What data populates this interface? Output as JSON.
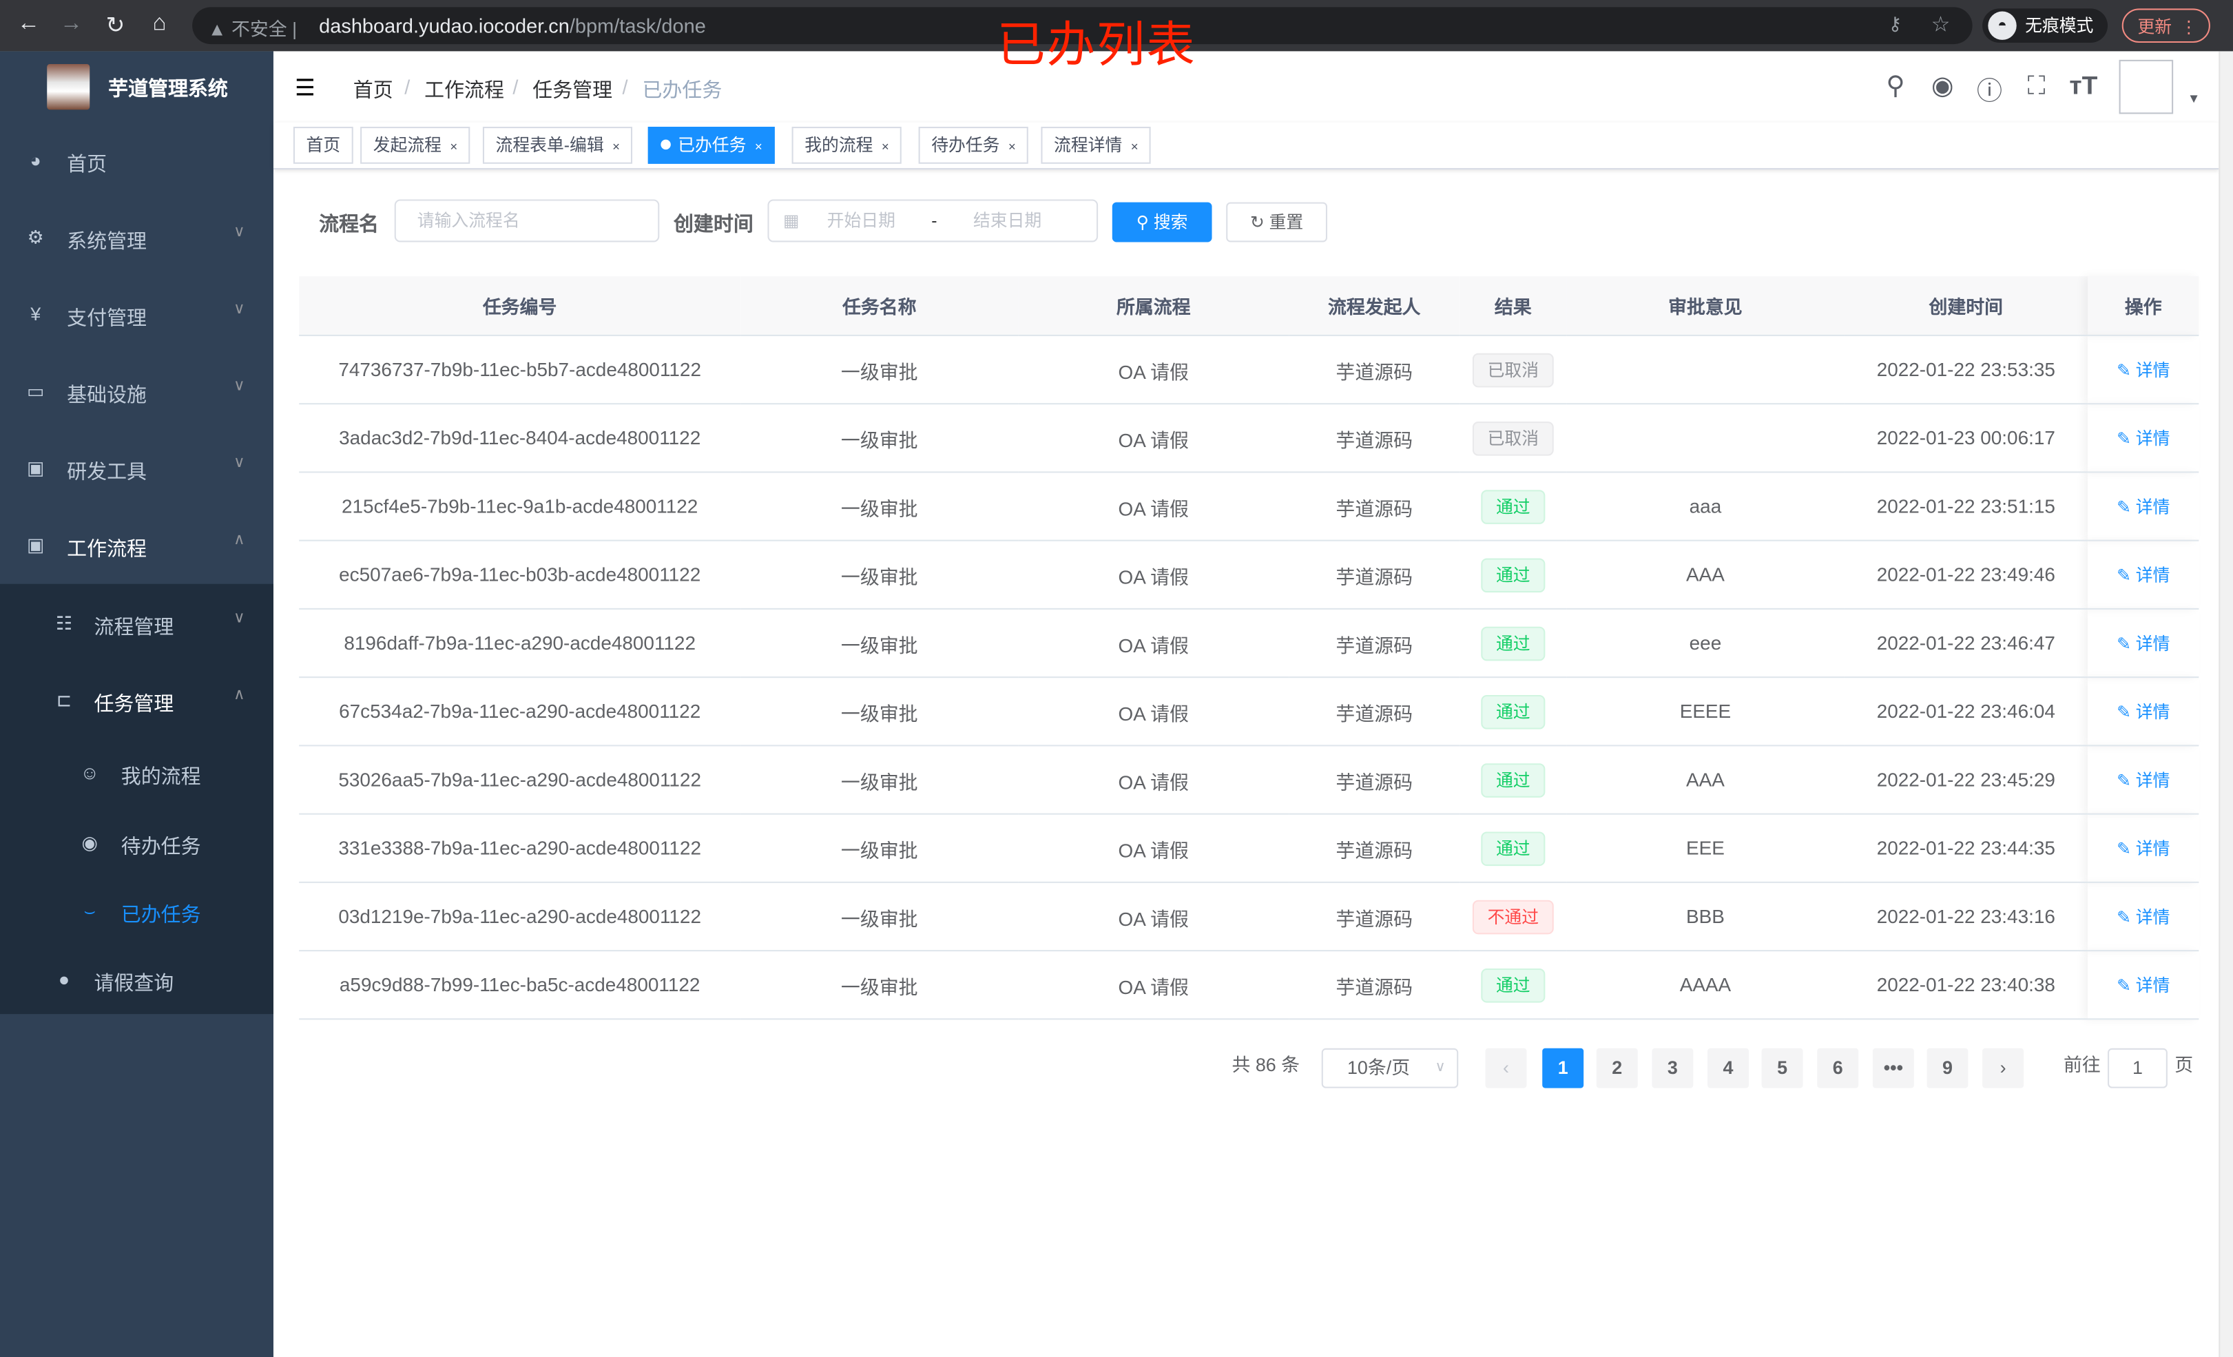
{
  "browser": {
    "insecure_label": "不安全",
    "url_host": "dashboard.yudao.iocoder.cn",
    "url_path": "/bpm/task/done",
    "incognito_label": "无痕模式",
    "update_label": "更新"
  },
  "overlay_title": "已办列表",
  "sidebar": {
    "logo_text": "芋道管理系统",
    "items": [
      {
        "label": "首页",
        "icon": "dashboard-icon"
      },
      {
        "label": "系统管理",
        "icon": "gear-icon"
      },
      {
        "label": "支付管理",
        "icon": "yen-icon"
      },
      {
        "label": "基础设施",
        "icon": "monitor-icon"
      },
      {
        "label": "研发工具",
        "icon": "toolbox-icon"
      },
      {
        "label": "工作流程",
        "icon": "toolbox-icon"
      },
      {
        "label": "流程管理",
        "icon": "list-icon"
      },
      {
        "label": "任务管理",
        "icon": "tree-icon"
      },
      {
        "label": "我的流程",
        "icon": "robot-icon"
      },
      {
        "label": "待办任务",
        "icon": "eye-open-icon"
      },
      {
        "label": "已办任务",
        "icon": "eye-closed-icon"
      },
      {
        "label": "请假查询",
        "icon": "user-icon"
      }
    ]
  },
  "breadcrumb": [
    "首页",
    "工作流程",
    "任务管理",
    "已办任务"
  ],
  "tags": [
    "首页",
    "发起流程",
    "流程表单-编辑",
    "已办任务",
    "我的流程",
    "待办任务",
    "流程详情"
  ],
  "active_tag": "已办任务",
  "search": {
    "name_label": "流程名",
    "name_placeholder": "请输入流程名",
    "time_label": "创建时间",
    "start_placeholder": "开始日期",
    "range_sep": "-",
    "end_placeholder": "结束日期",
    "search_label": "搜索",
    "reset_label": "重置"
  },
  "table": {
    "columns": [
      "任务编号",
      "任务名称",
      "所属流程",
      "流程发起人",
      "结果",
      "审批意见",
      "创建时间",
      "操作"
    ],
    "action_label": "详情",
    "rows": [
      {
        "id": "74736737-7b9b-11ec-b5b7-acde48001122",
        "name": "一级审批",
        "process": "OA 请假",
        "initiator": "芋道源码",
        "result": "已取消",
        "result_type": "gray",
        "comment": "",
        "created": "2022-01-22 23:53:35"
      },
      {
        "id": "3adac3d2-7b9d-11ec-8404-acde48001122",
        "name": "一级审批",
        "process": "OA 请假",
        "initiator": "芋道源码",
        "result": "已取消",
        "result_type": "gray",
        "comment": "",
        "created": "2022-01-23 00:06:17"
      },
      {
        "id": "215cf4e5-7b9b-11ec-9a1b-acde48001122",
        "name": "一级审批",
        "process": "OA 请假",
        "initiator": "芋道源码",
        "result": "通过",
        "result_type": "green",
        "comment": "aaa",
        "created": "2022-01-22 23:51:15"
      },
      {
        "id": "ec507ae6-7b9a-11ec-b03b-acde48001122",
        "name": "一级审批",
        "process": "OA 请假",
        "initiator": "芋道源码",
        "result": "通过",
        "result_type": "green",
        "comment": "AAA",
        "created": "2022-01-22 23:49:46"
      },
      {
        "id": "8196daff-7b9a-11ec-a290-acde48001122",
        "name": "一级审批",
        "process": "OA 请假",
        "initiator": "芋道源码",
        "result": "通过",
        "result_type": "green",
        "comment": "eee",
        "created": "2022-01-22 23:46:47"
      },
      {
        "id": "67c534a2-7b9a-11ec-a290-acde48001122",
        "name": "一级审批",
        "process": "OA 请假",
        "initiator": "芋道源码",
        "result": "通过",
        "result_type": "green",
        "comment": "EEEE",
        "created": "2022-01-22 23:46:04"
      },
      {
        "id": "53026aa5-7b9a-11ec-a290-acde48001122",
        "name": "一级审批",
        "process": "OA 请假",
        "initiator": "芋道源码",
        "result": "通过",
        "result_type": "green",
        "comment": "AAA",
        "created": "2022-01-22 23:45:29"
      },
      {
        "id": "331e3388-7b9a-11ec-a290-acde48001122",
        "name": "一级审批",
        "process": "OA 请假",
        "initiator": "芋道源码",
        "result": "通过",
        "result_type": "green",
        "comment": "EEE",
        "created": "2022-01-22 23:44:35"
      },
      {
        "id": "03d1219e-7b9a-11ec-a290-acde48001122",
        "name": "一级审批",
        "process": "OA 请假",
        "initiator": "芋道源码",
        "result": "不通过",
        "result_type": "red",
        "comment": "BBB",
        "created": "2022-01-22 23:43:16"
      },
      {
        "id": "a59c9d88-7b99-11ec-ba5c-acde48001122",
        "name": "一级审批",
        "process": "OA 请假",
        "initiator": "芋道源码",
        "result": "通过",
        "result_type": "green",
        "comment": "AAAA",
        "created": "2022-01-22 23:40:38"
      }
    ]
  },
  "pagination": {
    "total_label": "共 86 条",
    "page_size": "10条/页",
    "pages": [
      "1",
      "2",
      "3",
      "4",
      "5",
      "6",
      "•••",
      "9"
    ],
    "current": "1",
    "goto_label": "前往",
    "goto_value": "1",
    "page_suffix": "页"
  },
  "colors": {
    "primary": "#1890ff",
    "sidebar": "#304156",
    "submenu": "#1f2d3d",
    "success": "#13ce66",
    "danger": "#ff4949",
    "overlay": "#ff2200"
  }
}
